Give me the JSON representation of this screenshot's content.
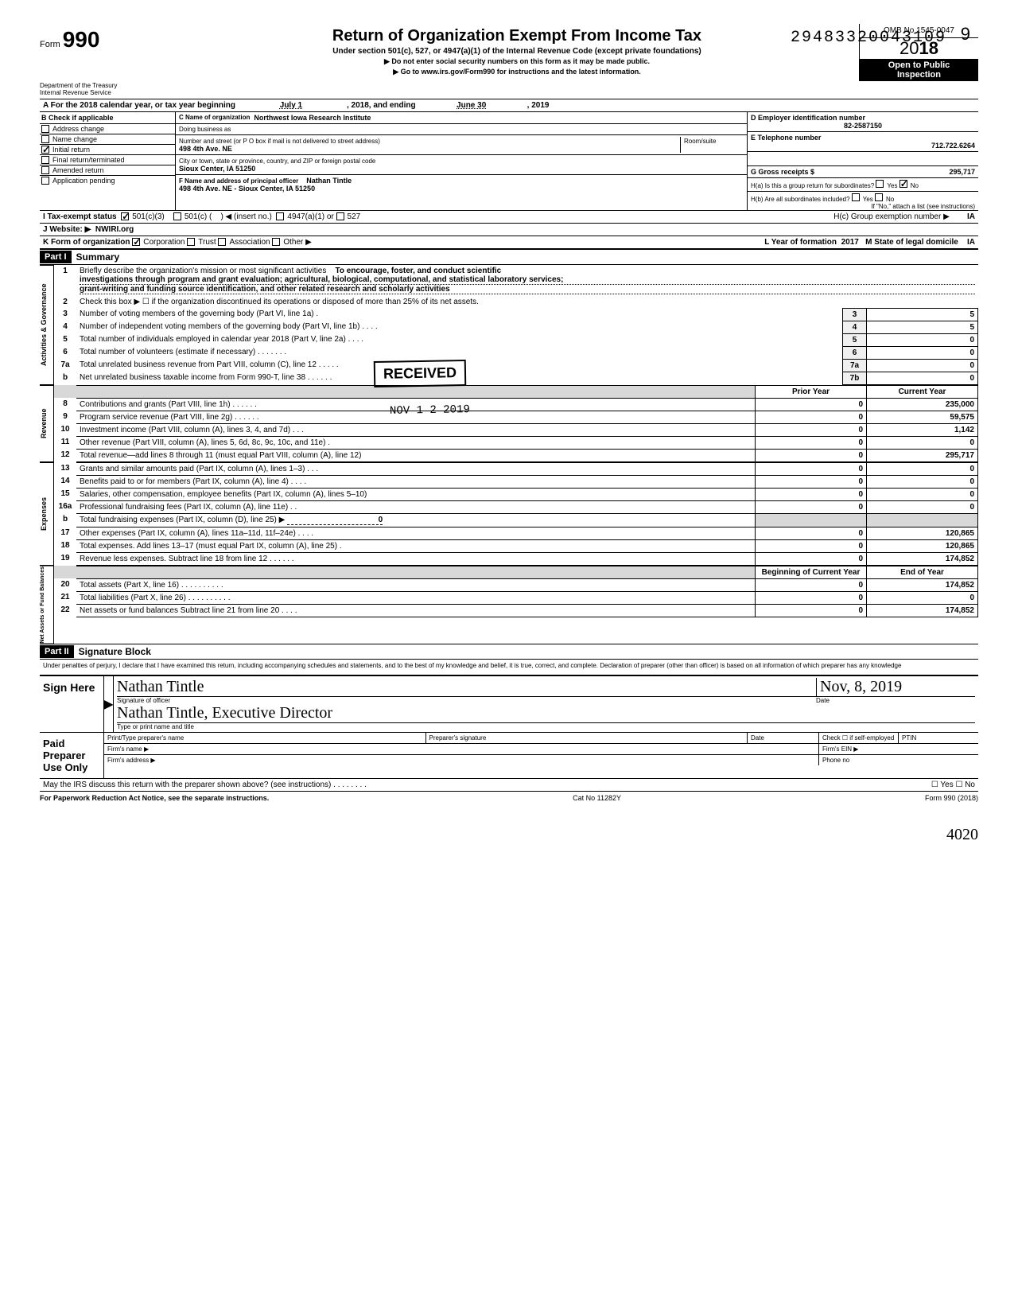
{
  "page_number": "9",
  "stamp_number": "29483320043109",
  "form": {
    "prefix": "Form",
    "num": "990"
  },
  "title": "Return of Organization Exempt From Income Tax",
  "subtitle": "Under section 501(c), 527, or 4947(a)(1) of the Internal Revenue Code (except private foundations)",
  "instr1": "▶ Do not enter social security numbers on this form as it may be made public.",
  "instr2": "▶ Go to www.irs.gov/Form990 for instructions and the latest information.",
  "omb": "OMB No 1545-0047",
  "year_prefix": "20",
  "year_bold": "18",
  "inspect1": "Open to Public",
  "inspect2": "Inspection",
  "dept1": "Department of the Treasury",
  "dept2": "Internal Revenue Service",
  "lineA": {
    "label": "A  For the 2018 calendar year, or tax year beginning",
    "begin": "July 1",
    "mid": ", 2018, and ending",
    "end": "June 30",
    "endyr": ", 2019"
  },
  "B": {
    "header": "B  Check if applicable",
    "items": [
      {
        "label": "Address change",
        "checked": false
      },
      {
        "label": "Name change",
        "checked": false
      },
      {
        "label": "Initial return",
        "checked": true
      },
      {
        "label": "Final return/terminated",
        "checked": false
      },
      {
        "label": "Amended return",
        "checked": false
      },
      {
        "label": "Application pending",
        "checked": false
      }
    ]
  },
  "C": {
    "name_label": "C Name of organization",
    "name": "Northwest Iowa Research Institute",
    "dba_label": "Doing business as",
    "dba": "",
    "street_label": "Number and street (or P O box if mail is not delivered to street address)",
    "street": "498  4th Ave. NE",
    "room_label": "Room/suite",
    "room": "",
    "city_label": "City or town, state or province, country, and ZIP or foreign postal code",
    "city": "Sioux Center, IA  51250",
    "officer_label": "F Name and address of principal officer",
    "officer": "Nathan Tintle",
    "officer_addr": "498  4th Ave. NE - Sioux Center, IA   51250"
  },
  "D": {
    "label": "D Employer identification number",
    "value": "82-2587150"
  },
  "E": {
    "label": "E Telephone number",
    "value": "712.722.6264"
  },
  "G": {
    "label": "G Gross receipts $",
    "value": "295,717"
  },
  "H": {
    "a": "H(a) Is this a group return for subordinates?",
    "a_yes": false,
    "a_no": true,
    "b": "H(b) Are all subordinates included?",
    "b_yes": false,
    "b_no": false,
    "b_note": "If \"No,\" attach a list (see instructions)",
    "c": "H(c) Group exemption number ▶",
    "c_val": "IA"
  },
  "I": {
    "label": "I      Tax-exempt status",
    "c3": true,
    "c_other": "501(c) (",
    "insert": ") ◀ (insert no.)",
    "a1": "4947(a)(1) or",
    "s527": "527"
  },
  "J": {
    "label": "J     Website: ▶",
    "value": "NWIRI.org"
  },
  "K": {
    "label": "K    Form of organization",
    "corp": true,
    "trust": false,
    "assoc": false,
    "other": "Other ▶",
    "L": "L Year of formation",
    "L_val": "2017",
    "M": "M State of legal domicile",
    "M_val": "IA"
  },
  "part1": {
    "hdr": "Part I",
    "title": "Summary"
  },
  "mission_label": "Briefly describe the organization's mission or most significant activities",
  "mission_l1": "To encourage, foster, and conduct scientific",
  "mission_l2": "investigations through program and grant evaluation; agricultural, biological, computational, and statistical laboratory services;",
  "mission_l3": "grant-writing and funding source identification, and other related research and scholarly activities",
  "line2": "Check this box ▶ ☐ if the organization discontinued its operations or disposed of more than 25% of its net assets.",
  "gov_rows": [
    {
      "n": "3",
      "d": "Number of voting members of the governing body (Part VI, line 1a) .",
      "c": "3",
      "v": "5"
    },
    {
      "n": "4",
      "d": "Number of independent voting members of the governing body (Part VI, line 1b)    .    .    .    .",
      "c": "4",
      "v": "5"
    },
    {
      "n": "5",
      "d": "Total number of individuals employed in calendar year 2018 (Part V, line 2a)     .      .      .      .",
      "c": "5",
      "v": "0"
    },
    {
      "n": "6",
      "d": "Total number of volunteers (estimate if necessary)       .       .       .       .      .      .      .",
      "c": "6",
      "v": "0"
    },
    {
      "n": "7a",
      "d": "Total unrelated business revenue from Part VIII, column (C), line 12      .      .      .      .      .",
      "c": "7a",
      "v": "0"
    },
    {
      "n": "b",
      "d": "Net unrelated business taxable income from Form 990-T, line 38   .      .      .      .      .      .",
      "c": "7b",
      "v": "0"
    }
  ],
  "rev_hdr_prior": "Prior Year",
  "rev_hdr_curr": "Current Year",
  "rev_rows": [
    {
      "n": "8",
      "d": "Contributions and grants (Part VIII, line 1h)      .      .      .      .      .      .",
      "p": "0",
      "c": "235,000"
    },
    {
      "n": "9",
      "d": "Program service revenue (Part VIII, line 2g)      .      .      .      .      .      .",
      "p": "0",
      "c": "59,575"
    },
    {
      "n": "10",
      "d": "Investment income (Part VIII, column (A), lines 3, 4, and 7d)     .     .     .",
      "p": "0",
      "c": "1,142"
    },
    {
      "n": "11",
      "d": "Other revenue (Part VIII, column (A), lines 5, 6d, 8c, 9c, 10c, and 11e)    .",
      "p": "0",
      "c": "0"
    },
    {
      "n": "12",
      "d": "Total revenue—add lines 8 through 11 (must equal Part VIII, column (A), line 12)",
      "p": "0",
      "c": "295,717"
    }
  ],
  "exp_rows": [
    {
      "n": "13",
      "d": "Grants and similar amounts paid (Part IX, column (A), lines 1–3)  .    .    .",
      "p": "0",
      "c": "0"
    },
    {
      "n": "14",
      "d": "Benefits paid to or for members (Part IX, column (A), line 4)     .     .     .     .",
      "p": "0",
      "c": "0"
    },
    {
      "n": "15",
      "d": "Salaries, other compensation, employee benefits (Part IX, column (A), lines 5–10)",
      "p": "0",
      "c": "0"
    },
    {
      "n": "16a",
      "d": "Professional fundraising fees (Part IX, column (A), line 11e)    .    .",
      "p": "0",
      "c": "0"
    },
    {
      "n": "b",
      "d": "Total fundraising expenses (Part IX, column (D), line 25) ▶",
      "p": "",
      "c": "",
      "inline": "0",
      "shade": true
    },
    {
      "n": "17",
      "d": "Other expenses (Part IX, column (A), lines 11a–11d, 11f–24e)     .     .     .     .",
      "p": "0",
      "c": "120,865"
    },
    {
      "n": "18",
      "d": "Total expenses. Add lines 13–17 (must equal Part IX, column (A), line 25)     .",
      "p": "0",
      "c": "120,865"
    },
    {
      "n": "19",
      "d": "Revenue less expenses. Subtract line 18 from line 12   .     .     .     .     .     .",
      "p": "0",
      "c": "174,852"
    }
  ],
  "na_hdr_beg": "Beginning of Current Year",
  "na_hdr_end": "End of Year",
  "na_rows": [
    {
      "n": "20",
      "d": "Total assets (Part X, line 16)       .       .       .       .       .      .       .      .      .     .",
      "p": "0",
      "c": "174,852"
    },
    {
      "n": "21",
      "d": "Total liabilities (Part X, line 26)      .      .      .      .      .      .      .      .     .      .",
      "p": "0",
      "c": "0"
    },
    {
      "n": "22",
      "d": "Net assets or fund balances  Subtract line 21 from line 20      .      .      .      .",
      "p": "0",
      "c": "174,852"
    }
  ],
  "part2": {
    "hdr": "Part II",
    "title": "Signature Block"
  },
  "perjury": "Under penalties of perjury, I declare that I have examined this return, including accompanying schedules and statements, and to the best of my knowledge and belief, it is true, correct, and complete. Declaration of preparer (other than officer) is based on all information of which preparer has any knowledge",
  "sign": {
    "here": "Sign Here",
    "sig_label": "Signature of officer",
    "date_label": "Date",
    "date_hand": "Nov, 8, 2019",
    "name_hand": "Nathan Tintle, Executive Director",
    "type_label": "Type or print name and title"
  },
  "paid": {
    "label": "Paid Preparer Use Only",
    "pname": "Print/Type preparer's name",
    "psig": "Preparer's signature",
    "pdate": "Date",
    "check": "Check ☐ if self-employed",
    "ptin": "PTIN",
    "firm": "Firm's name    ▶",
    "ein": "Firm's EIN ▶",
    "addr": "Firm's address ▶",
    "phone": "Phone no"
  },
  "irs_discuss": "May the IRS discuss this return with the preparer shown above? (see instructions)     .      .      .      .      .     .     .     .",
  "yesno": "☐ Yes ☐ No",
  "footer_left": "For Paperwork Reduction Act Notice, see the separate instructions.",
  "footer_mid": "Cat No 11282Y",
  "footer_right": "Form 990 (2018)",
  "received": "RECEIVED",
  "nov_date": "NOV 1 2 2019",
  "initials": "4020",
  "vlabels": {
    "gov": "Activities & Governance",
    "rev": "Revenue",
    "exp": "Expenses",
    "na": "Net Assets or\nFund Balances"
  }
}
